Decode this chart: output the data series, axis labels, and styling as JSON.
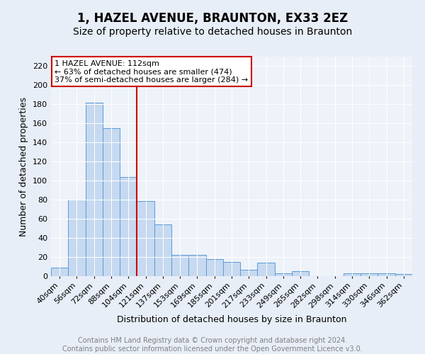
{
  "title": "1, HAZEL AVENUE, BRAUNTON, EX33 2EZ",
  "subtitle": "Size of property relative to detached houses in Braunton",
  "xlabel": "Distribution of detached houses by size in Braunton",
  "ylabel": "Number of detached properties",
  "footer_line1": "Contains HM Land Registry data © Crown copyright and database right 2024.",
  "footer_line2": "Contains public sector information licensed under the Open Government Licence v3.0.",
  "categories": [
    "40sqm",
    "56sqm",
    "72sqm",
    "88sqm",
    "104sqm",
    "121sqm",
    "137sqm",
    "153sqm",
    "169sqm",
    "185sqm",
    "201sqm",
    "217sqm",
    "233sqm",
    "249sqm",
    "265sqm",
    "282sqm",
    "298sqm",
    "314sqm",
    "330sqm",
    "346sqm",
    "362sqm"
  ],
  "values": [
    9,
    80,
    182,
    155,
    104,
    79,
    54,
    22,
    22,
    18,
    15,
    7,
    14,
    3,
    5,
    0,
    0,
    3,
    3,
    3,
    2
  ],
  "bar_color": "#c6d9f0",
  "bar_edge_color": "#5b9bd5",
  "vline_x_index": 4.5,
  "annotation_title": "1 HAZEL AVENUE: 112sqm",
  "annotation_line2": "← 63% of detached houses are smaller (474)",
  "annotation_line3": "37% of semi-detached houses are larger (284) →",
  "annotation_box_color": "#cc0000",
  "vline_color": "#cc0000",
  "ylim": [
    0,
    230
  ],
  "yticks": [
    0,
    20,
    40,
    60,
    80,
    100,
    120,
    140,
    160,
    180,
    200,
    220
  ],
  "bg_color": "#e8eef7",
  "plot_bg_color": "#eef2f9",
  "title_fontsize": 12,
  "subtitle_fontsize": 10,
  "axis_label_fontsize": 9,
  "tick_fontsize": 8,
  "footer_fontsize": 7,
  "annotation_fontsize": 8
}
